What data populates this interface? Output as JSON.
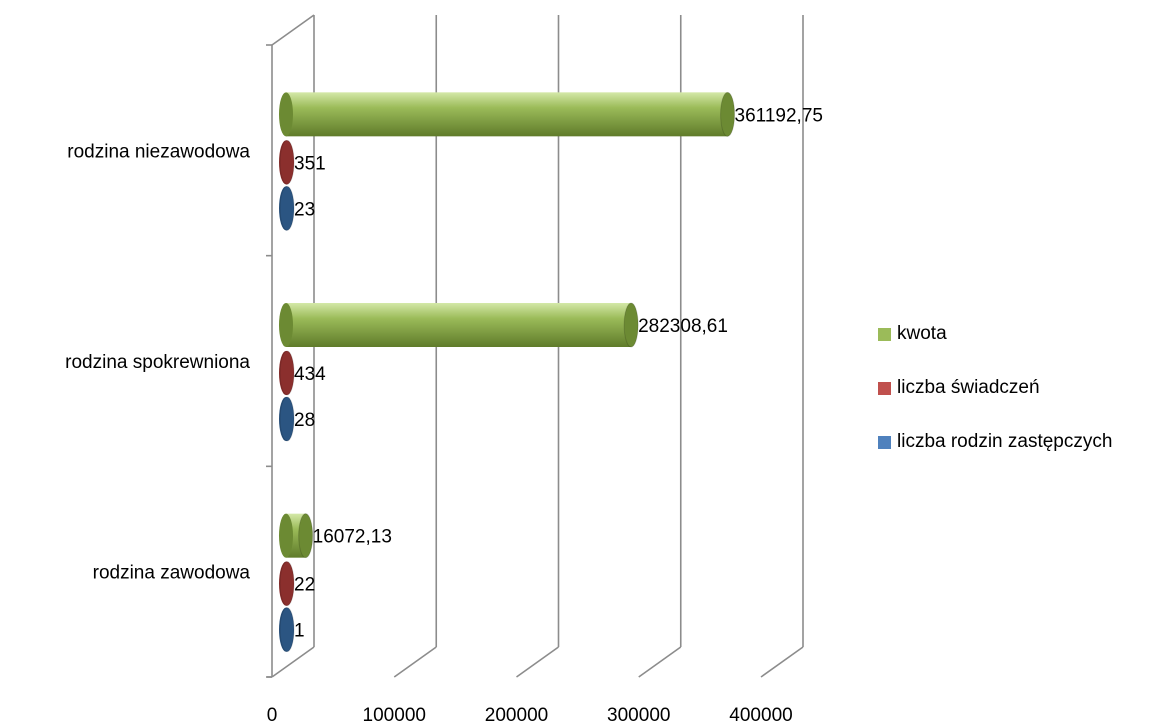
{
  "chart_data": {
    "type": "bar",
    "orientation": "horizontal",
    "style": "3d-cylinder",
    "categories": [
      "rodzina zawodowa",
      "rodzina spokrewniona",
      "rodzina niezawodowa"
    ],
    "series": [
      {
        "name": "liczba rodzin zastępczych",
        "color": "#4F81BD",
        "values": [
          1,
          28,
          23
        ],
        "labels": [
          "1",
          "28",
          "23"
        ]
      },
      {
        "name": "liczba świadczeń",
        "color": "#C0504D",
        "values": [
          22,
          434,
          351
        ],
        "labels": [
          "22",
          "434",
          "351"
        ]
      },
      {
        "name": "kwota",
        "color": "#9BBB59",
        "values": [
          16072.13,
          282308.61,
          361192.75
        ],
        "labels": [
          "16072,13",
          "282308,61",
          "361192,75"
        ]
      }
    ],
    "x_ticks": [
      "0",
      "100000",
      "200000",
      "300000",
      "400000"
    ],
    "xlim": [
      0,
      400000
    ],
    "grid": true,
    "legend_position": "right",
    "legend_order": [
      "kwota",
      "liczba świadczeń",
      "liczba rodzin zastępczych"
    ]
  }
}
